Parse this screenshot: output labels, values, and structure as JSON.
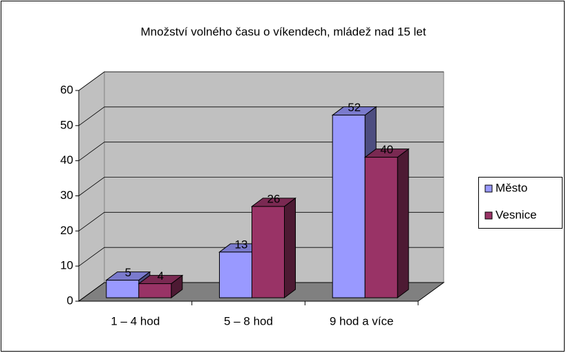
{
  "chart_data": {
    "type": "bar3d",
    "title": "Množství volného času o víkendech, mládež nad 15 let",
    "categories": [
      "1 – 4 hod",
      "5 – 8 hod",
      "9 hod a více"
    ],
    "series": [
      {
        "name": "Město",
        "color": "#9999ff",
        "values": [
          5,
          13,
          52
        ]
      },
      {
        "name": "Vesnice",
        "color": "#993366",
        "values": [
          4,
          26,
          40
        ]
      }
    ],
    "ylim": [
      0,
      60
    ],
    "yticks": [
      0,
      10,
      20,
      30,
      40,
      50,
      60
    ],
    "grid": true,
    "legend": "right"
  }
}
